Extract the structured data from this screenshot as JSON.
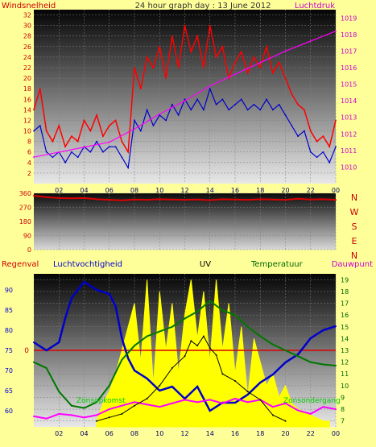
{
  "chart_data": [
    {
      "type": "line",
      "title": "24 hour graph day : 13 June 2012",
      "left_label": "Windsnelheid",
      "right_label": "Luchtdruk",
      "x_ticks": [
        "02",
        "04",
        "06",
        "08",
        "10",
        "12",
        "14",
        "16",
        "18",
        "20",
        "22",
        "00"
      ],
      "y_left_ticks": [
        2,
        4,
        6,
        8,
        10,
        12,
        14,
        16,
        18,
        20,
        22,
        24,
        26,
        28,
        30,
        32
      ],
      "y_right_ticks": [
        1010,
        1011,
        1012,
        1013,
        1014,
        1015,
        1016,
        1017,
        1018,
        1019
      ],
      "ylim_left": [
        0,
        33
      ],
      "ylim_right": [
        1009,
        1019.5
      ],
      "grid": true,
      "colors": {
        "gust": "#ff0000",
        "wind": "#0000cc",
        "pressure": "#ff00ff"
      },
      "series": [
        {
          "name": "Windsnelheid",
          "role": "gust",
          "x": [
            0,
            0.5,
            1,
            1.5,
            2,
            2.5,
            3,
            3.5,
            4,
            4.5,
            5,
            5.5,
            6,
            6.5,
            7,
            7.5,
            8,
            8.5,
            9,
            9.5,
            10,
            10.5,
            11,
            11.5,
            12,
            12.5,
            13,
            13.5,
            14,
            14.5,
            15,
            15.5,
            16,
            16.5,
            17,
            17.5,
            18,
            18.5,
            19,
            19.5,
            20,
            20.5,
            21,
            21.5,
            22,
            22.5,
            23,
            23.5,
            24
          ],
          "y": [
            14,
            18,
            10,
            8,
            11,
            7,
            9,
            8,
            12,
            10,
            13,
            9,
            11,
            12,
            8,
            6,
            22,
            18,
            24,
            22,
            26,
            20,
            28,
            22,
            30,
            25,
            28,
            22,
            30,
            24,
            26,
            20,
            23,
            25,
            21,
            24,
            22,
            26,
            21,
            23,
            20,
            17,
            15,
            14,
            10,
            8,
            9,
            7,
            12
          ]
        },
        {
          "name": "Windsnelheid (avg)",
          "role": "wind",
          "x": [
            0,
            0.5,
            1,
            1.5,
            2,
            2.5,
            3,
            3.5,
            4,
            4.5,
            5,
            5.5,
            6,
            6.5,
            7,
            7.5,
            8,
            8.5,
            9,
            9.5,
            10,
            10.5,
            11,
            11.5,
            12,
            12.5,
            13,
            13.5,
            14,
            14.5,
            15,
            15.5,
            16,
            16.5,
            17,
            17.5,
            18,
            18.5,
            19,
            19.5,
            20,
            20.5,
            21,
            21.5,
            22,
            22.5,
            23,
            23.5,
            24
          ],
          "y": [
            10,
            11,
            6,
            5,
            6,
            4,
            6,
            5,
            7,
            6,
            8,
            6,
            7,
            7,
            5,
            3,
            12,
            10,
            14,
            11,
            13,
            12,
            15,
            13,
            16,
            14,
            16,
            14,
            18,
            15,
            16,
            14,
            15,
            16,
            14,
            15,
            14,
            16,
            14,
            15,
            13,
            11,
            9,
            10,
            6,
            5,
            6,
            4,
            7
          ]
        },
        {
          "name": "Luchtdruk",
          "role": "pressure",
          "x": [
            0,
            2,
            4,
            6,
            8,
            10,
            12,
            14,
            16,
            18,
            20,
            22,
            24
          ],
          "y": [
            1010.6,
            1010.9,
            1011.2,
            1011.5,
            1012.3,
            1013.2,
            1014.0,
            1014.9,
            1015.6,
            1016.3,
            1017.0,
            1017.6,
            1018.2
          ]
        }
      ]
    },
    {
      "type": "line",
      "title": "",
      "right_labels": [
        "N",
        "W",
        "S",
        "E",
        "N"
      ],
      "y_left_ticks": [
        0,
        90,
        180,
        270,
        360
      ],
      "ylim": [
        0,
        360
      ],
      "x_ticks": [],
      "colors": {
        "direction": "#dd0000"
      },
      "series": [
        {
          "name": "Windrichting",
          "x": [
            0,
            1,
            2,
            3,
            4,
            5,
            6,
            7,
            8,
            9,
            10,
            11,
            12,
            13,
            14,
            15,
            16,
            17,
            18,
            19,
            20,
            21,
            22,
            23,
            24
          ],
          "y": [
            345,
            335,
            330,
            328,
            330,
            322,
            318,
            315,
            320,
            318,
            322,
            320,
            318,
            320,
            316,
            322,
            320,
            318,
            322,
            320,
            318,
            325,
            320,
            322,
            318
          ]
        }
      ]
    },
    {
      "type": "line",
      "labels": {
        "regenval": "Regenval",
        "luchtvochtigheid": "Luchtvochtigheid",
        "uv": "UV",
        "temperatuur": "Temperatuur",
        "dauwpunt": "Dauwpunt"
      },
      "annotations": {
        "zon_left": "Zonsopkomst",
        "zon_right": "Zonsondergang",
        "rain_zero": "0"
      },
      "x_ticks": [
        "02",
        "04",
        "06",
        "08",
        "10",
        "12",
        "14",
        "16",
        "18",
        "20",
        "22",
        "00"
      ],
      "y_left_ticks": [
        60,
        65,
        70,
        75,
        80,
        85,
        90
      ],
      "y_right_ticks": [
        7,
        8,
        9,
        10,
        11,
        12,
        13,
        14,
        15,
        16,
        17,
        18,
        19
      ],
      "ylim_left": [
        56,
        94
      ],
      "ylim_right": [
        6.5,
        19.5
      ],
      "colors": {
        "humidity": "#0000cc",
        "temperature": "#007700",
        "dewpoint": "#ff00ff",
        "solar": "#ffff00",
        "uv": "#000000",
        "rain": "#dd0000"
      },
      "series": [
        {
          "name": "Luchtvochtigheid",
          "axis": "left",
          "x": [
            0,
            1,
            2,
            2.5,
            3,
            3.5,
            4,
            5,
            6,
            6.5,
            7,
            7.5,
            8,
            9,
            10,
            11,
            12,
            13,
            14,
            15,
            16,
            17,
            18,
            19,
            20,
            21,
            22,
            23,
            24
          ],
          "y": [
            77,
            75,
            77,
            83,
            88,
            90,
            92,
            90,
            89,
            86,
            78,
            73,
            70,
            68,
            65,
            66,
            63,
            66,
            60,
            62,
            62,
            64,
            67,
            69,
            72,
            74,
            78,
            80,
            81
          ]
        },
        {
          "name": "Temperatuur",
          "axis": "right",
          "x": [
            0,
            1,
            2,
            3,
            4,
            5,
            6,
            7,
            8,
            9,
            10,
            11,
            12,
            13,
            14,
            15,
            16,
            17,
            18,
            19,
            20,
            21,
            22,
            23,
            24
          ],
          "y": [
            12,
            11.5,
            9.5,
            8.3,
            8.1,
            8.6,
            10,
            12.2,
            13.4,
            14.2,
            14.6,
            15,
            15.7,
            16.3,
            17.2,
            16.4,
            16,
            15,
            14.2,
            13.5,
            13,
            12.5,
            12,
            11.8,
            11.7
          ]
        },
        {
          "name": "Dauwpunt",
          "axis": "right",
          "x": [
            0,
            1,
            2,
            3,
            4,
            5,
            6,
            7,
            8,
            9,
            10,
            11,
            12,
            13,
            14,
            15,
            16,
            17,
            18,
            19,
            20,
            21,
            22,
            23,
            24
          ],
          "y": [
            7.4,
            7.2,
            7.6,
            7.5,
            7.3,
            7.5,
            8,
            8.3,
            8.6,
            8.4,
            8.2,
            8.5,
            8.8,
            8.6,
            8.8,
            8.5,
            8.9,
            8.6,
            8.8,
            8.2,
            8.5,
            7.9,
            7.6,
            8.2,
            8
          ]
        },
        {
          "name": "UV",
          "axis": "right",
          "x": [
            5,
            6,
            7,
            8,
            9,
            10,
            11,
            12,
            12.5,
            13,
            13.5,
            14,
            14.5,
            15,
            16,
            17,
            18,
            19,
            20
          ],
          "y": [
            7,
            7.3,
            7.6,
            8.3,
            8.9,
            10,
            11.5,
            12.5,
            13.8,
            13.4,
            14.2,
            13.2,
            12.6,
            11,
            10.4,
            9.5,
            8.8,
            7.5,
            7
          ]
        },
        {
          "name": "Zonnestraling",
          "axis": "right",
          "x": [
            5,
            5.5,
            6,
            6.5,
            7,
            7.5,
            8,
            8.5,
            9,
            9.5,
            10,
            10.5,
            11,
            11.5,
            12,
            12.5,
            13,
            13.5,
            14,
            14.5,
            15,
            15.5,
            16,
            16.5,
            17,
            17.5,
            18,
            18.5,
            19,
            19.5,
            20,
            20.5,
            21,
            22,
            23,
            23.5
          ],
          "y": [
            7,
            8.5,
            9.5,
            11,
            13,
            15,
            17,
            12,
            19,
            10,
            18,
            13,
            17,
            11,
            16,
            19,
            14,
            18,
            12,
            19,
            13,
            17,
            11,
            15,
            9,
            14,
            12,
            10,
            11,
            9,
            10,
            8.5,
            8,
            7.5,
            7,
            7
          ]
        }
      ],
      "rain": {
        "value": 0
      }
    }
  ]
}
